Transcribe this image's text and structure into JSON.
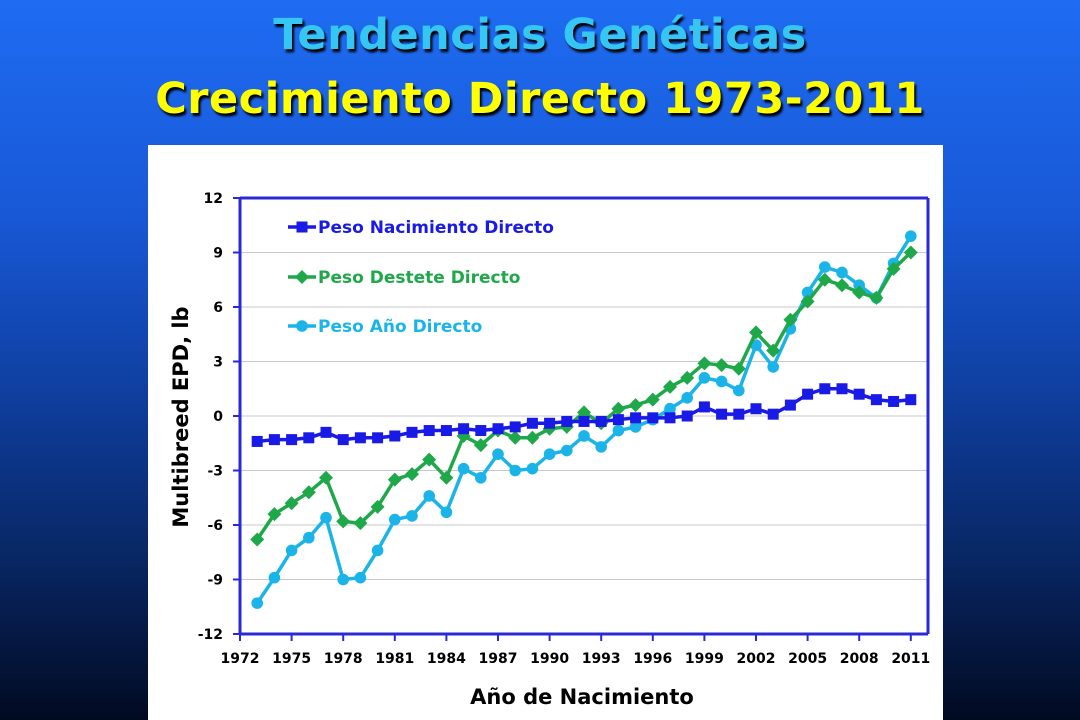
{
  "title_line1": "Tendencias Genéticas",
  "title_line2": "Crecimiento Directo 1973-2011",
  "colors": {
    "title1": "#36c6f4",
    "title2": "#ffff00",
    "axis": "#2929d6"
  },
  "chart_data": {
    "type": "line",
    "xlabel": "Año de Nacimiento",
    "ylabel": "Multibreed EPD, lb",
    "xlim": [
      1972,
      2012
    ],
    "ylim": [
      -12,
      12
    ],
    "xticks": [
      1972,
      1975,
      1978,
      1981,
      1984,
      1987,
      1990,
      1993,
      1996,
      1999,
      2002,
      2005,
      2008,
      2011
    ],
    "yticks": [
      12,
      9,
      6,
      3,
      0,
      -3,
      -6,
      -9,
      -12
    ],
    "grid": true,
    "legend_position": "top-left",
    "x": [
      1973,
      1974,
      1975,
      1976,
      1977,
      1978,
      1979,
      1980,
      1981,
      1982,
      1983,
      1984,
      1985,
      1986,
      1987,
      1988,
      1989,
      1990,
      1991,
      1992,
      1993,
      1994,
      1995,
      1996,
      1997,
      1998,
      1999,
      2000,
      2001,
      2002,
      2003,
      2004,
      2005,
      2006,
      2007,
      2008,
      2009,
      2010,
      2011
    ],
    "series": [
      {
        "name": "Peso Nacimiento Directo",
        "color": "#1a1ae6",
        "marker": "square",
        "values": [
          -1.4,
          -1.3,
          -1.3,
          -1.2,
          -0.9,
          -1.3,
          -1.2,
          -1.2,
          -1.1,
          -0.9,
          -0.8,
          -0.8,
          -0.7,
          -0.8,
          -0.7,
          -0.6,
          -0.4,
          -0.4,
          -0.3,
          -0.3,
          -0.3,
          -0.2,
          -0.1,
          -0.1,
          -0.1,
          0.0,
          0.5,
          0.1,
          0.1,
          0.4,
          0.1,
          0.6,
          1.2,
          1.5,
          1.5,
          1.2,
          0.9,
          0.8,
          0.9
        ]
      },
      {
        "name": "Peso Destete Directo",
        "color": "#1fa84a",
        "marker": "diamond",
        "values": [
          -6.8,
          -5.4,
          -4.8,
          -4.2,
          -3.4,
          -5.8,
          -5.9,
          -5.0,
          -3.5,
          -3.2,
          -2.4,
          -3.4,
          -1.1,
          -1.6,
          -0.8,
          -1.2,
          -1.2,
          -0.7,
          -0.6,
          0.2,
          -0.4,
          0.4,
          0.6,
          0.9,
          1.6,
          2.1,
          2.9,
          2.8,
          2.6,
          4.6,
          3.6,
          5.3,
          6.3,
          7.5,
          7.2,
          6.8,
          6.5,
          8.1,
          9.0
        ]
      },
      {
        "name": "Peso Año Directo",
        "color": "#1ab4e8",
        "marker": "circle",
        "values": [
          -10.3,
          -8.9,
          -7.4,
          -6.7,
          -5.6,
          -9.0,
          -8.9,
          -7.4,
          -5.7,
          -5.5,
          -4.4,
          -5.3,
          -2.9,
          -3.4,
          -2.1,
          -3.0,
          -2.9,
          -2.1,
          -1.9,
          -1.1,
          -1.7,
          -0.8,
          -0.6,
          -0.2,
          0.4,
          1.0,
          2.1,
          1.9,
          1.4,
          3.9,
          2.7,
          4.8,
          6.8,
          8.2,
          7.9,
          7.2,
          6.5,
          8.4,
          9.9
        ]
      }
    ]
  }
}
